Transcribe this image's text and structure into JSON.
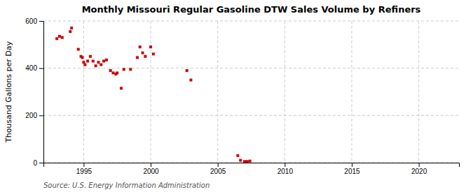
{
  "chart_data": {
    "type": "scatter",
    "title": "Monthly Missouri Regular Gasoline DTW Sales Volume by Refiners",
    "ylabel": "Thousand Gallons per Day",
    "annotations": [
      "Source: U.S. Energy Information Administration"
    ],
    "color": "#cc0000",
    "marker": "square",
    "grid": true,
    "xlim": [
      1992,
      2023
    ],
    "ylim": [
      0,
      600
    ],
    "xticks": [
      1995,
      2000,
      2005,
      2010,
      2015,
      2020
    ],
    "yticks": [
      0,
      200,
      400,
      600
    ],
    "x": [
      1993.0,
      1993.2,
      1993.4,
      1994.0,
      1994.1,
      1994.6,
      1994.8,
      1994.9,
      1995.0,
      1995.1,
      1995.3,
      1995.5,
      1995.7,
      1995.9,
      1996.1,
      1996.3,
      1996.5,
      1996.7,
      1997.0,
      1997.2,
      1997.4,
      1997.5,
      1997.8,
      1998.0,
      1998.5,
      1999.0,
      1999.2,
      1999.4,
      1999.6,
      2000.0,
      2000.2,
      2002.7,
      2003.0,
      2006.5,
      2006.7,
      2007.0,
      2007.2,
      2007.4
    ],
    "values": [
      525,
      535,
      530,
      555,
      570,
      480,
      450,
      445,
      425,
      415,
      430,
      450,
      430,
      410,
      425,
      415,
      430,
      435,
      390,
      380,
      375,
      380,
      315,
      395,
      395,
      445,
      490,
      465,
      450,
      490,
      460,
      390,
      350,
      30,
      10,
      5,
      5,
      7
    ]
  }
}
